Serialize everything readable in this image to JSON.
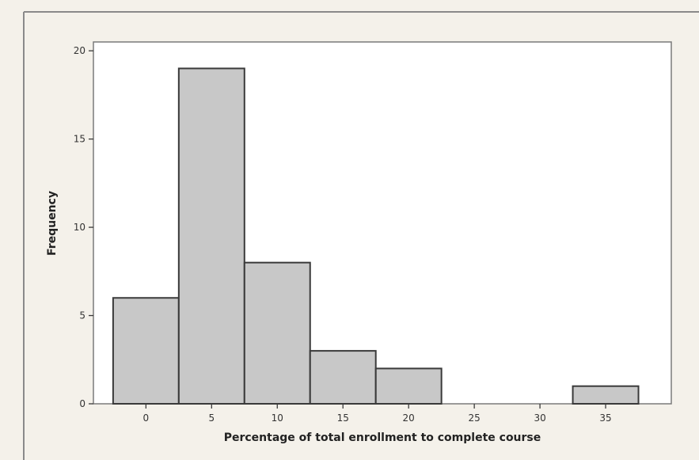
{
  "chart_data": {
    "type": "bar",
    "title": "",
    "xlabel": "Percentage of total enrollment to complete course",
    "ylabel": "Frequency",
    "categories": [
      "0",
      "5",
      "10",
      "15",
      "20",
      "25",
      "30",
      "35"
    ],
    "bin_centers": [
      0,
      5,
      10,
      15,
      20,
      25,
      30,
      35
    ],
    "bin_width": 5,
    "values": [
      6,
      19,
      8,
      3,
      2,
      0,
      0,
      1
    ],
    "x_ticks": [
      0,
      5,
      10,
      15,
      20,
      25,
      30,
      35
    ],
    "y_ticks": [
      0,
      5,
      10,
      15,
      20
    ],
    "xlim": [
      -4,
      40
    ],
    "ylim": [
      0,
      20.5
    ],
    "grid": false,
    "legend": "none",
    "colors": {
      "bar_fill": "#c8c8c8",
      "bar_edge": "#3a3a3a",
      "background": "#f4f1ea"
    }
  }
}
